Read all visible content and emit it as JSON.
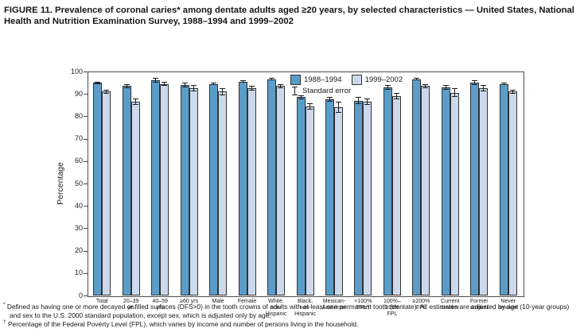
{
  "figure": {
    "title": "FIGURE 11. Prevalence of coronal caries* among dentate adults aged ≥20 years, by selected characteristics — United States, National Health and Nutrition Examination Survey, 1988–1994 and 1999–2002"
  },
  "colors": {
    "series_1988_1994": "#5b9dc9",
    "series_1999_2002": "#ccd9ec",
    "bar_border": "#323232",
    "axis_frame": "#4a4a4a",
    "error_bar": "#1c1c1c"
  },
  "chart_data": {
    "type": "bar",
    "title": "Prevalence of coronal caries among dentate adults aged ≥20 years",
    "xlabel": "",
    "ylabel": "Percentage",
    "ylim": [
      0,
      100
    ],
    "y_ticks": [
      0,
      10,
      20,
      30,
      40,
      50,
      60,
      70,
      80,
      90,
      100
    ],
    "grid": false,
    "legend_position": "top-center-inside",
    "categories": [
      "Total",
      "20–39\nyrs",
      "40–59\nyrs",
      "≥60 yrs",
      "Male",
      "Female",
      "White,\nnon-\nHispanic",
      "Black,\nnon-\nHispanic",
      "Mexican-\nAmerican",
      "<100%\nFPL†",
      "100%–\n199%\nFPL",
      "≥200%\nFPL",
      "Current\nsmoker",
      "Former\nsmoker",
      "Never\nsmoked"
    ],
    "series": [
      {
        "name": "1988–1994",
        "values": [
          95,
          93.5,
          96,
          94,
          94.5,
          95.5,
          96.5,
          88.5,
          87.5,
          87,
          93,
          96.5,
          93,
          95,
          94.5
        ],
        "standard_errors": [
          0.5,
          1,
          1,
          1,
          0.5,
          0.5,
          0.5,
          1,
          1,
          1.5,
          1,
          0.5,
          1,
          1,
          0.5
        ]
      },
      {
        "name": "1999–2002",
        "values": [
          91,
          86.5,
          94.5,
          92.5,
          91,
          92.5,
          93.5,
          84.5,
          84,
          86.5,
          89,
          93.5,
          90.5,
          92.5,
          91
        ],
        "standard_errors": [
          1,
          1.5,
          1,
          1.5,
          1.5,
          1,
          1,
          1.5,
          2.5,
          1.5,
          1.5,
          1,
          2,
          1.5,
          1
        ]
      }
    ],
    "legend": {
      "standard_error_label": "Standard error"
    }
  },
  "footnotes": [
    {
      "marker": "*",
      "text": "Defined as having one or more decayed or filled surfaces (DFS>0) in the tooth crowns of adults with at least one permanent tooth (dentate). All estimates are adjusted by age (10-year groups) and sex to the U.S. 2000 standard population, except sex, which is adjusted only by age."
    },
    {
      "marker": "†",
      "text": "Percentage of the Federal Poverty Level (FPL), which varies by income and number of persons living in the household."
    }
  ]
}
